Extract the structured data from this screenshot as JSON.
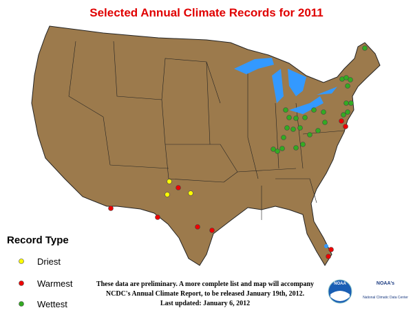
{
  "header": {
    "title": "Selected Annual Climate Records for 2011"
  },
  "legend": {
    "title": "Record Type",
    "items": [
      "Driest",
      "Warmest",
      "Wettest"
    ]
  },
  "note": {
    "lines": [
      "These data are preliminary. A more complete list and map will accompany",
      "NCDC's Annual Climate Report, to be released January 19th, 2012.",
      "Last updated: January 6, 2012"
    ]
  },
  "logo": {
    "badge": "NOAA",
    "name": "NOAA's",
    "center": "National Climatic Data Center"
  }
}
